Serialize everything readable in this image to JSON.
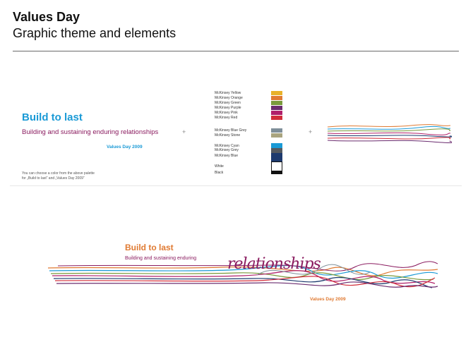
{
  "header": {
    "title": "Values Day",
    "subtitle": "Graphic theme and elements"
  },
  "panel_top": {
    "headline": "Build to last",
    "tagline": "Building and sustaining enduring relationships",
    "event": "Values Day 2009",
    "note_line1": "You can choose a color from the above palette",
    "note_line2": "for „Build to last“ and „Values Day 2009“",
    "plus": "+",
    "palette": [
      {
        "label": "McKinsey Yellow",
        "color": "#e8b12a"
      },
      {
        "label": "McKinsey Orange",
        "color": "#e07a32"
      },
      {
        "label": "McKinsey Green",
        "color": "#7a9a3c"
      },
      {
        "label": "McKinsey Purple",
        "color": "#6b2c6f"
      },
      {
        "label": "McKinsey Pink",
        "color": "#b0206a"
      },
      {
        "label": "McKinsey Red",
        "color": "#d12d3a"
      },
      {
        "label": "McKinsey Blue Grey",
        "color": "#7f8f99"
      },
      {
        "label": "McKinsey Stone",
        "color": "#a9a47f"
      },
      {
        "label": "McKinsey Cyan",
        "color": "#1a9ad6"
      },
      {
        "label": "McKinsey Grey",
        "color": "#555a5f"
      },
      {
        "label": "McKinsey Blue",
        "color": "#1d3a6e"
      },
      {
        "label": "White",
        "color": "#ffffff"
      },
      {
        "label": "Black",
        "color": "#111111"
      }
    ]
  },
  "panel_bottom": {
    "headline": "Build to last",
    "tagline": "Building and sustaining enduring",
    "script_word": "relationships",
    "event": "Values Day 2009"
  }
}
